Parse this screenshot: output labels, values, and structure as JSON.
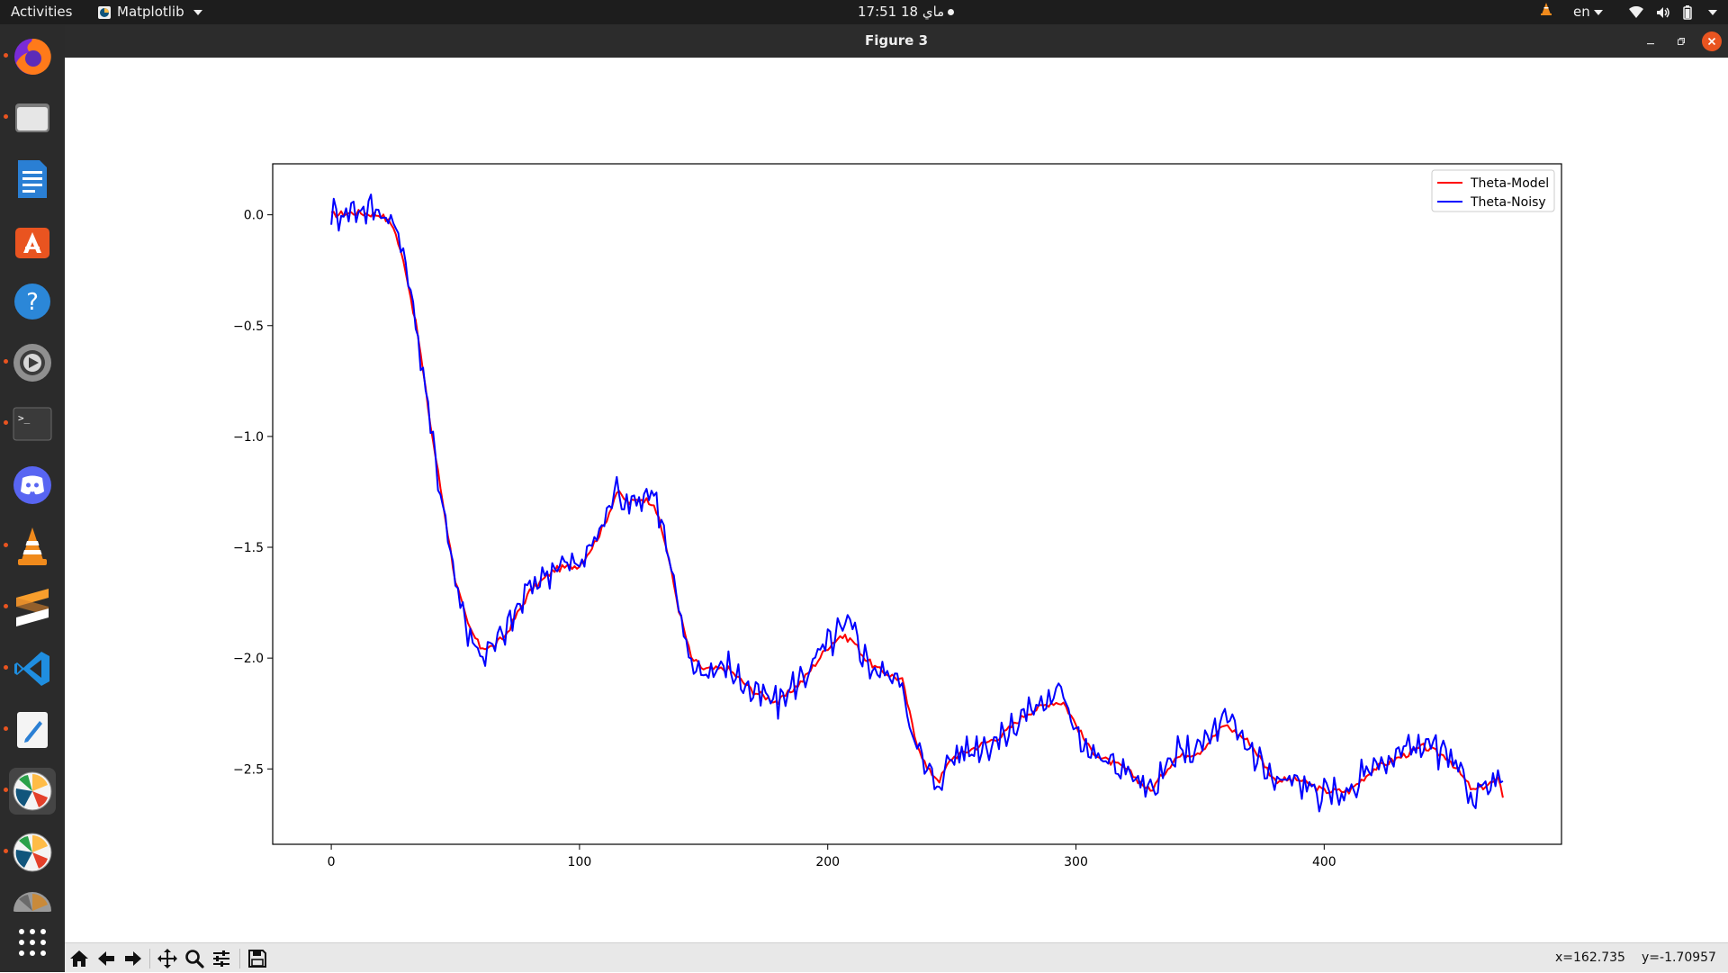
{
  "topbar": {
    "activities": "Activities",
    "app_menu": "Matplotlib",
    "clock": "17:51  18 ماي",
    "language": "en",
    "icons": [
      "vlc-tray-icon",
      "wifi-icon",
      "volume-icon",
      "battery-icon",
      "power-menu-icon"
    ]
  },
  "dock": {
    "items": [
      {
        "name": "firefox",
        "icon": "firefox-icon",
        "running": true
      },
      {
        "name": "files",
        "icon": "files-icon",
        "running": true
      },
      {
        "name": "libreoffice-writer",
        "icon": "writer-icon",
        "running": false
      },
      {
        "name": "ubuntu-software",
        "icon": "software-icon",
        "running": false
      },
      {
        "name": "help",
        "icon": "help-icon",
        "running": false
      },
      {
        "name": "settings",
        "icon": "settings-icon",
        "running": true
      },
      {
        "name": "terminal",
        "icon": "terminal-icon",
        "running": true
      },
      {
        "name": "discord",
        "icon": "discord-icon",
        "running": false
      },
      {
        "name": "vlc",
        "icon": "vlc-icon",
        "running": true
      },
      {
        "name": "sublime-text",
        "icon": "sublime-icon",
        "running": true
      },
      {
        "name": "vscode",
        "icon": "vscode-icon",
        "running": true
      },
      {
        "name": "text-editor",
        "icon": "text-editor-icon",
        "running": true
      },
      {
        "name": "matplotlib-figure-1",
        "icon": "matplotlib-icon",
        "running": true,
        "active": true
      },
      {
        "name": "matplotlib-figure-2",
        "icon": "matplotlib-icon",
        "running": true
      },
      {
        "name": "matplotlib-figure-3",
        "icon": "matplotlib-icon",
        "running": false
      },
      {
        "name": "show-applications",
        "icon": "app-grid-icon",
        "running": false
      }
    ]
  },
  "window": {
    "title": "Figure 3",
    "controls": [
      "minimize",
      "maximize",
      "close"
    ]
  },
  "toolbar": {
    "tools": [
      "home",
      "back",
      "forward",
      "pan",
      "zoom",
      "configure-subplots",
      "save"
    ],
    "coord_x": "x=162.735",
    "coord_y": "y=-1.70957"
  },
  "colors": {
    "model": "#ff0000",
    "noisy": "#0000ff",
    "accent": "#e95420"
  },
  "chart_data": {
    "type": "line",
    "title": "",
    "xlabel": "",
    "ylabel": "",
    "xlim": [
      -23.6,
      495.6
    ],
    "ylim": [
      -2.84,
      0.23
    ],
    "xticks": [
      0,
      100,
      200,
      300,
      400
    ],
    "xtick_labels": [
      "0",
      "100",
      "200",
      "300",
      "400"
    ],
    "yticks": [
      0.0,
      -0.5,
      -1.0,
      -1.5,
      -2.0,
      -2.5
    ],
    "ytick_labels": [
      "0.0",
      "−0.5",
      "−1.0",
      "−1.5",
      "−2.0",
      "−2.5"
    ],
    "legend_position": "top-right",
    "n_points": 473,
    "series": [
      {
        "name": "Theta-Model",
        "color": "#ff0000",
        "x": [
          0,
          10,
          20,
          25,
          30,
          35,
          40,
          45,
          50,
          55,
          60,
          65,
          70,
          80,
          90,
          100,
          105,
          110,
          115,
          120,
          125,
          130,
          135,
          140,
          145,
          150,
          160,
          170,
          180,
          190,
          200,
          205,
          210,
          215,
          220,
          230,
          235,
          240,
          245,
          250,
          260,
          270,
          280,
          290,
          295,
          300,
          305,
          310,
          320,
          330,
          340,
          350,
          360,
          370,
          380,
          390,
          400,
          410,
          420,
          430,
          440,
          450,
          460,
          470,
          472
        ],
        "y": [
          0.0,
          0.01,
          0.0,
          -0.05,
          -0.25,
          -0.55,
          -0.95,
          -1.3,
          -1.65,
          -1.85,
          -1.95,
          -1.95,
          -1.9,
          -1.7,
          -1.6,
          -1.58,
          -1.5,
          -1.4,
          -1.25,
          -1.3,
          -1.28,
          -1.3,
          -1.5,
          -1.78,
          -2.0,
          -2.05,
          -2.05,
          -2.15,
          -2.2,
          -2.1,
          -1.95,
          -1.9,
          -1.92,
          -2.0,
          -2.05,
          -2.1,
          -2.35,
          -2.5,
          -2.55,
          -2.45,
          -2.4,
          -2.35,
          -2.25,
          -2.2,
          -2.2,
          -2.3,
          -2.4,
          -2.45,
          -2.5,
          -2.6,
          -2.45,
          -2.42,
          -2.3,
          -2.38,
          -2.55,
          -2.55,
          -2.6,
          -2.6,
          -2.5,
          -2.45,
          -2.4,
          -2.45,
          -2.6,
          -2.55,
          -2.62
        ]
      },
      {
        "name": "Theta-Noisy",
        "color": "#0000ff",
        "x": [
          0,
          10,
          20,
          25,
          30,
          35,
          40,
          45,
          50,
          55,
          60,
          65,
          70,
          80,
          90,
          100,
          105,
          110,
          115,
          120,
          125,
          130,
          135,
          140,
          145,
          150,
          160,
          170,
          180,
          190,
          200,
          205,
          210,
          215,
          220,
          230,
          235,
          240,
          245,
          250,
          260,
          270,
          280,
          290,
          295,
          300,
          305,
          310,
          320,
          330,
          340,
          350,
          360,
          370,
          380,
          390,
          400,
          410,
          420,
          430,
          440,
          450,
          460,
          470,
          472
        ],
        "y": [
          0.0,
          0.03,
          0.02,
          -0.03,
          -0.22,
          -0.55,
          -0.97,
          -1.3,
          -1.65,
          -1.87,
          -1.98,
          -1.96,
          -1.88,
          -1.68,
          -1.58,
          -1.58,
          -1.49,
          -1.38,
          -1.23,
          -1.3,
          -1.27,
          -1.24,
          -1.5,
          -1.8,
          -2.02,
          -2.06,
          -2.04,
          -2.16,
          -2.2,
          -2.08,
          -1.94,
          -1.88,
          -1.86,
          -2.0,
          -2.06,
          -2.1,
          -2.38,
          -2.52,
          -2.56,
          -2.44,
          -2.4,
          -2.36,
          -2.24,
          -2.18,
          -2.16,
          -2.3,
          -2.42,
          -2.46,
          -2.5,
          -2.62,
          -2.44,
          -2.4,
          -2.28,
          -2.4,
          -2.56,
          -2.56,
          -2.62,
          -2.6,
          -2.48,
          -2.44,
          -2.38,
          -2.46,
          -2.62,
          -2.54,
          -2.58
        ],
        "noise_amplitude": 0.06
      }
    ]
  }
}
